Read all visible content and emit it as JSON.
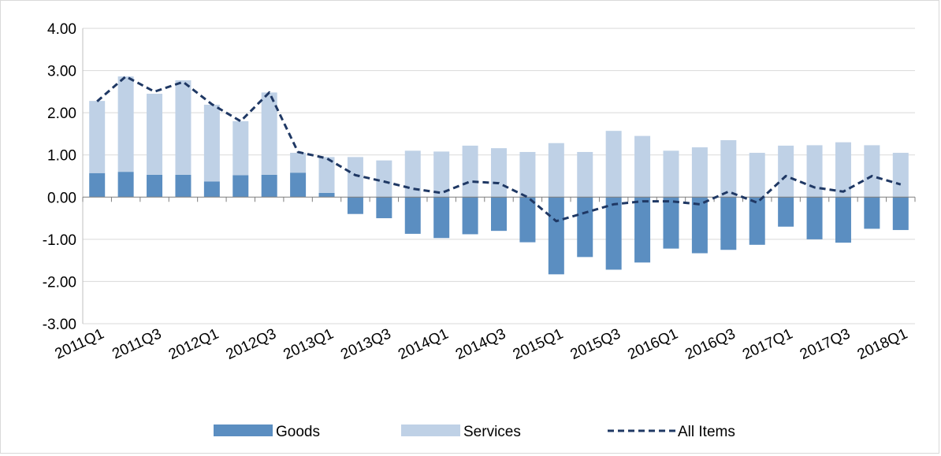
{
  "chart_data": {
    "type": "bar",
    "stacked": true,
    "categories": [
      "2011Q1",
      "2011Q2",
      "2011Q3",
      "2011Q4",
      "2012Q1",
      "2012Q2",
      "2012Q3",
      "2012Q4",
      "2013Q1",
      "2013Q2",
      "2013Q3",
      "2013Q4",
      "2014Q1",
      "2014Q2",
      "2014Q3",
      "2014Q4",
      "2015Q1",
      "2015Q2",
      "2015Q3",
      "2015Q4",
      "2016Q1",
      "2016Q2",
      "2016Q3",
      "2016Q4",
      "2017Q1",
      "2017Q2",
      "2017Q3",
      "2017Q4",
      "2018Q1"
    ],
    "x_tick_labels": [
      "2011Q1",
      "2011Q3",
      "2012Q1",
      "2012Q3",
      "2013Q1",
      "2013Q3",
      "2014Q1",
      "2014Q3",
      "2015Q1",
      "2015Q3",
      "2016Q1",
      "2016Q3",
      "2017Q1",
      "2017Q3",
      "2018Q1"
    ],
    "series": [
      {
        "name": "Goods",
        "kind": "bar",
        "color": "#5b8ec1",
        "values": [
          0.57,
          0.6,
          0.53,
          0.53,
          0.37,
          0.52,
          0.53,
          0.58,
          0.1,
          -0.4,
          -0.5,
          -0.87,
          -0.97,
          -0.88,
          -0.8,
          -1.07,
          -1.83,
          -1.42,
          -1.72,
          -1.55,
          -1.22,
          -1.33,
          -1.25,
          -1.13,
          -0.7,
          -1.0,
          -1.08,
          -0.75,
          -0.78
        ]
      },
      {
        "name": "Services",
        "kind": "bar",
        "color": "#bfd1e6",
        "values": [
          1.71,
          2.26,
          1.92,
          2.24,
          1.82,
          1.28,
          1.95,
          0.47,
          0.85,
          0.95,
          0.87,
          1.1,
          1.08,
          1.22,
          1.16,
          1.07,
          1.28,
          1.07,
          1.57,
          1.45,
          1.1,
          1.18,
          1.35,
          1.05,
          1.22,
          1.23,
          1.3,
          1.23,
          1.05
        ]
      },
      {
        "name": "All Items",
        "kind": "line",
        "color": "#1f3864",
        "dashed": true,
        "values": [
          2.27,
          2.86,
          2.5,
          2.73,
          2.2,
          1.8,
          2.48,
          1.07,
          0.92,
          0.52,
          0.37,
          0.2,
          0.1,
          0.37,
          0.33,
          0.0,
          -0.57,
          -0.37,
          -0.17,
          -0.1,
          -0.1,
          -0.17,
          0.13,
          -0.13,
          0.5,
          0.23,
          0.13,
          0.5,
          0.3
        ]
      }
    ],
    "y_ticks": [
      "4.00",
      "3.00",
      "2.00",
      "1.00",
      "0.00",
      "-1.00",
      "-2.00",
      "-3.00"
    ],
    "ylim": [
      -3,
      4
    ],
    "grid": true,
    "legend_position": "bottom"
  }
}
